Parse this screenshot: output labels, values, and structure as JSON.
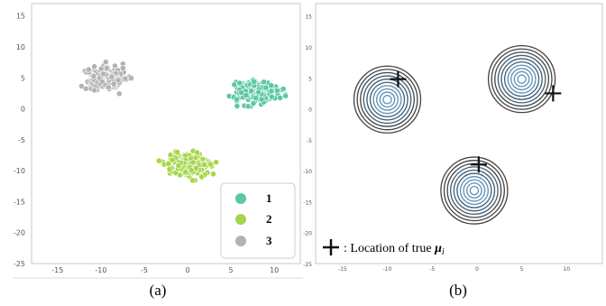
{
  "chart_data": [
    {
      "type": "scatter",
      "panel_label": "(a)",
      "xlim": [
        -18,
        13
      ],
      "ylim": [
        -25,
        17
      ],
      "xticks": [
        -15,
        -10,
        -5,
        0,
        5,
        10
      ],
      "yticks": [
        15,
        10,
        5,
        0,
        -5,
        -10,
        -15,
        -20,
        -25
      ],
      "grid": false,
      "legend_position": "lower-right",
      "series": [
        {
          "name": "1",
          "color": "#5cc8a3",
          "center": [
            8,
            2.8
          ],
          "spread": [
            2.2,
            1.5
          ],
          "count": 230
        },
        {
          "name": "2",
          "color": "#a5d64a",
          "center": [
            0,
            -9
          ],
          "spread": [
            2.2,
            1.6
          ],
          "count": 230
        },
        {
          "name": "3",
          "color": "#b3b3b3",
          "center": [
            -9.5,
            5
          ],
          "spread": [
            2.0,
            1.6
          ],
          "count": 230
        }
      ]
    },
    {
      "type": "contour",
      "panel_label": "(b)",
      "xlim": [
        -18,
        14
      ],
      "ylim": [
        -25,
        17
      ],
      "xticks": [
        -15,
        -10,
        -5,
        0,
        5,
        10
      ],
      "yticks": [
        15,
        10,
        5,
        0,
        -5,
        -10,
        -15,
        -20,
        -25
      ],
      "grid": false,
      "components": [
        {
          "center": [
            -10,
            1.5
          ],
          "true_mean": [
            -8.8,
            4.8
          ]
        },
        {
          "center": [
            5,
            4.8
          ],
          "true_mean": [
            8.5,
            2.5
          ]
        },
        {
          "center": [
            -0.3,
            -13.2
          ],
          "true_mean": [
            0.2,
            -9
          ]
        }
      ],
      "annotation": ": Location of true ",
      "annotation_symbol": "μ",
      "annotation_subscript": "i"
    }
  ]
}
